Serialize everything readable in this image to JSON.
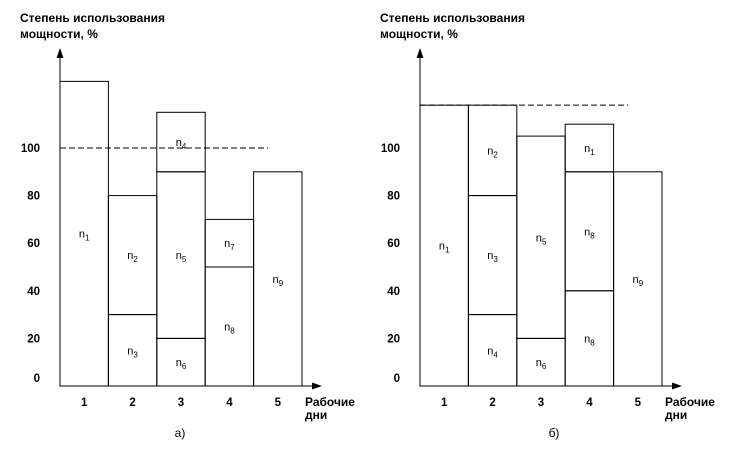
{
  "chart_data": [
    {
      "type": "bar",
      "caption": "а)",
      "ylabel_lines": [
        "Степень использования",
        "мощности, %"
      ],
      "xlabel_lines": [
        "Рабочие",
        "дни"
      ],
      "categories": [
        "1",
        "2",
        "3",
        "4",
        "5"
      ],
      "yticks": [
        0,
        20,
        40,
        60,
        80,
        100
      ],
      "ylim": [
        0,
        130
      ],
      "reference_line": 100,
      "bars": [
        {
          "day": "1",
          "segments": [
            {
              "from": 0,
              "to": 128,
              "label": "n",
              "sub": "1"
            }
          ]
        },
        {
          "day": "2",
          "segments": [
            {
              "from": 0,
              "to": 30,
              "label": "n",
              "sub": "3"
            },
            {
              "from": 30,
              "to": 80,
              "label": "n",
              "sub": "2"
            }
          ]
        },
        {
          "day": "3",
          "segments": [
            {
              "from": 0,
              "to": 20,
              "label": "n",
              "sub": "6"
            },
            {
              "from": 20,
              "to": 90,
              "label": "n",
              "sub": "5"
            },
            {
              "from": 90,
              "to": 115,
              "label": "n",
              "sub": "4"
            }
          ]
        },
        {
          "day": "4",
          "segments": [
            {
              "from": 0,
              "to": 50,
              "label": "n",
              "sub": "8"
            },
            {
              "from": 50,
              "to": 70,
              "label": "n",
              "sub": "7"
            }
          ]
        },
        {
          "day": "5",
          "segments": [
            {
              "from": 0,
              "to": 90,
              "label": "n",
              "sub": "9"
            }
          ]
        }
      ]
    },
    {
      "type": "bar",
      "caption": "б)",
      "ylabel_lines": [
        "Степень использования",
        "мощности, %"
      ],
      "xlabel_lines": [
        "Рабочие",
        "дни"
      ],
      "categories": [
        "1",
        "2",
        "3",
        "4",
        "5"
      ],
      "yticks": [
        0,
        20,
        40,
        60,
        80,
        100
      ],
      "ylim": [
        0,
        130
      ],
      "reference_line": 118,
      "bars": [
        {
          "day": "1",
          "segments": [
            {
              "from": 0,
              "to": 118,
              "label": "n",
              "sub": "1"
            }
          ]
        },
        {
          "day": "2",
          "segments": [
            {
              "from": 0,
              "to": 30,
              "label": "n",
              "sub": "4"
            },
            {
              "from": 30,
              "to": 80,
              "label": "n",
              "sub": "3"
            },
            {
              "from": 80,
              "to": 118,
              "label": "n",
              "sub": "2"
            }
          ]
        },
        {
          "day": "3",
          "segments": [
            {
              "from": 0,
              "to": 20,
              "label": "n",
              "sub": "6"
            },
            {
              "from": 20,
              "to": 105,
              "label": "n",
              "sub": "5"
            }
          ]
        },
        {
          "day": "4",
          "segments": [
            {
              "from": 0,
              "to": 40,
              "label": "n",
              "sub": "8"
            },
            {
              "from": 40,
              "to": 90,
              "label": "n",
              "sub": "8"
            },
            {
              "from": 90,
              "to": 110,
              "label": "n",
              "sub": "1"
            }
          ]
        },
        {
          "day": "5",
          "segments": [
            {
              "from": 0,
              "to": 90,
              "label": "n",
              "sub": "9"
            }
          ]
        }
      ]
    }
  ]
}
